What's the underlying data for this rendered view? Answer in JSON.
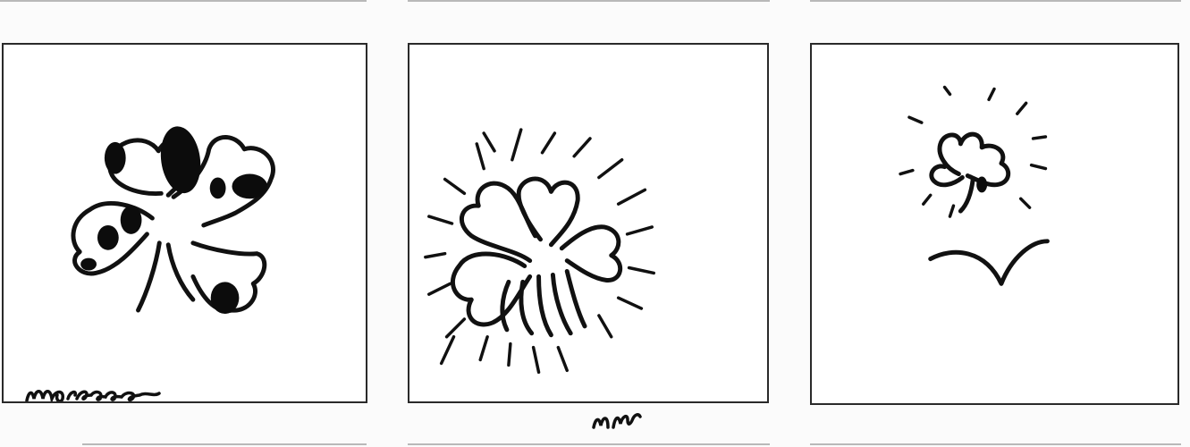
{
  "strip": {
    "panel_count": 3,
    "border_color": "#2a2a2a",
    "ink_color": "#111111",
    "paper_color": "#ffffff"
  },
  "panels": [
    {
      "subject": "clover-drawing",
      "style": "bold outline with solid black blots"
    },
    {
      "subject": "clover-drawing-radiating",
      "style": "outline clover with radiating strokes"
    },
    {
      "subject": "small-clover-over-hill",
      "style": "small radiating clover above a curved hill"
    }
  ],
  "signatures": [
    {
      "text": "moreco",
      "rendered_as": "handwritten-signature-image"
    },
    {
      "text": "nM",
      "rendered_as": "handwritten-signature-image"
    }
  ]
}
